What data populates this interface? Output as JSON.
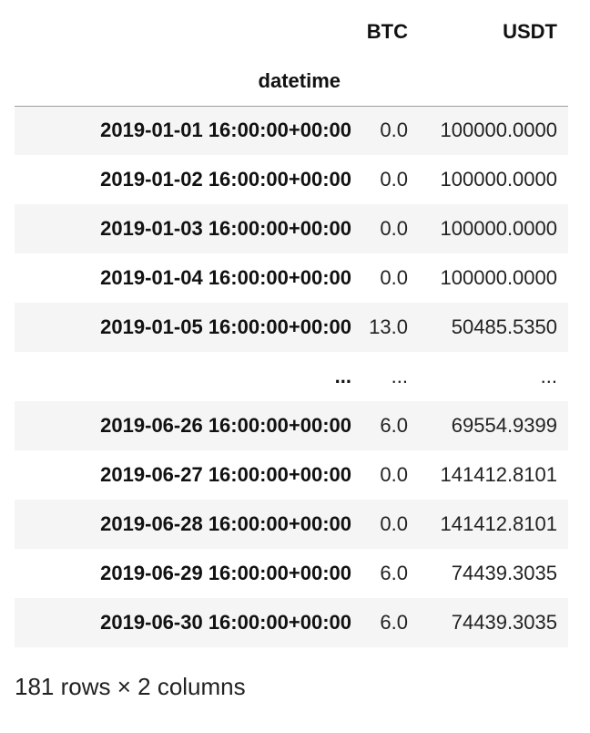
{
  "table": {
    "columns": [
      "BTC",
      "USDT"
    ],
    "index_name": "datetime",
    "rows": [
      {
        "index": "2019-01-01 16:00:00+00:00",
        "values": [
          "0.0",
          "100000.0000"
        ]
      },
      {
        "index": "2019-01-02 16:00:00+00:00",
        "values": [
          "0.0",
          "100000.0000"
        ]
      },
      {
        "index": "2019-01-03 16:00:00+00:00",
        "values": [
          "0.0",
          "100000.0000"
        ]
      },
      {
        "index": "2019-01-04 16:00:00+00:00",
        "values": [
          "0.0",
          "100000.0000"
        ]
      },
      {
        "index": "2019-01-05 16:00:00+00:00",
        "values": [
          "13.0",
          "50485.5350"
        ]
      },
      {
        "index": "...",
        "values": [
          "...",
          "..."
        ]
      },
      {
        "index": "2019-06-26 16:00:00+00:00",
        "values": [
          "6.0",
          "69554.9399"
        ]
      },
      {
        "index": "2019-06-27 16:00:00+00:00",
        "values": [
          "0.0",
          "141412.8101"
        ]
      },
      {
        "index": "2019-06-28 16:00:00+00:00",
        "values": [
          "0.0",
          "141412.8101"
        ]
      },
      {
        "index": "2019-06-29 16:00:00+00:00",
        "values": [
          "6.0",
          "74439.3035"
        ]
      },
      {
        "index": "2019-06-30 16:00:00+00:00",
        "values": [
          "6.0",
          "74439.3035"
        ]
      }
    ]
  },
  "shape_text": "181 rows × 2 columns"
}
